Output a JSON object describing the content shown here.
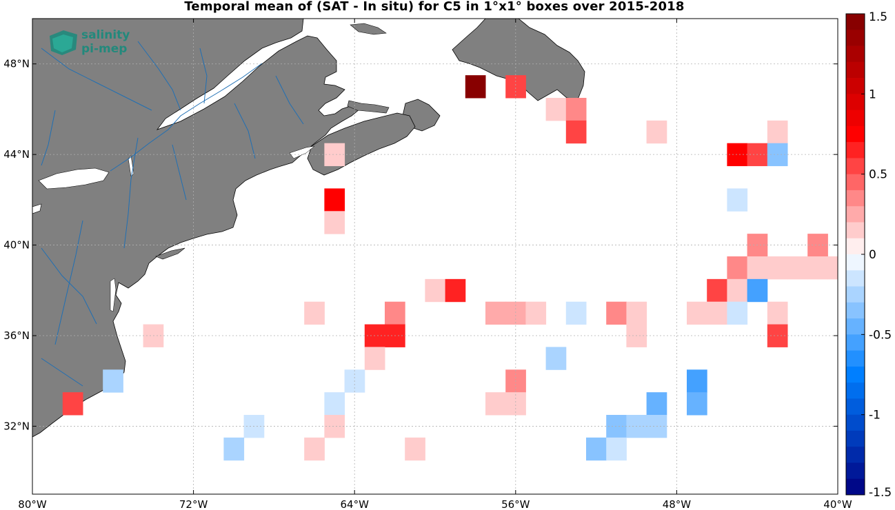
{
  "title": "Temporal mean of (SAT - In situ) for C5 in 1°x1° boxes over 2015-2018",
  "logo": {
    "line1": "salinity",
    "line2": "pi-mep",
    "icon": "salinity-pimep-logo-icon"
  },
  "map": {
    "lon_range": [
      -80,
      -40
    ],
    "lat_range": [
      29,
      50
    ],
    "land_color": "#808080",
    "river_color": "#1f6fb4",
    "grid": true,
    "lat_ticks": [
      {
        "value": 48,
        "label": "48°N"
      },
      {
        "value": 44,
        "label": "44°N"
      },
      {
        "value": 40,
        "label": "40°N"
      },
      {
        "value": 36,
        "label": "36°N"
      },
      {
        "value": 32,
        "label": "32°N"
      }
    ],
    "lon_ticks": [
      {
        "value": -80,
        "label": "80°W"
      },
      {
        "value": -72,
        "label": "72°W"
      },
      {
        "value": -64,
        "label": "64°W"
      },
      {
        "value": -56,
        "label": "56°W"
      },
      {
        "value": -48,
        "label": "48°W"
      },
      {
        "value": -40,
        "label": "40°W"
      }
    ]
  },
  "chart_data": {
    "type": "heatmap",
    "cell_size_deg": 1,
    "cells": [
      {
        "lon": -58,
        "lat": 47,
        "value": 1.5
      },
      {
        "lon": -56,
        "lat": 47,
        "value": 0.5
      },
      {
        "lon": -54,
        "lat": 46,
        "value": 0.15
      },
      {
        "lon": -53,
        "lat": 46,
        "value": 0.3
      },
      {
        "lon": -53,
        "lat": 45,
        "value": 0.5
      },
      {
        "lon": -49,
        "lat": 45,
        "value": 0.1
      },
      {
        "lon": -43,
        "lat": 45,
        "value": 0.1
      },
      {
        "lon": -45,
        "lat": 44,
        "value": 0.8
      },
      {
        "lon": -44,
        "lat": 44,
        "value": 0.5
      },
      {
        "lon": -43,
        "lat": 44,
        "value": -0.3
      },
      {
        "lon": -65,
        "lat": 44,
        "value": 0.1
      },
      {
        "lon": -45,
        "lat": 42,
        "value": -0.1
      },
      {
        "lon": -65,
        "lat": 42,
        "value": 0.8
      },
      {
        "lon": -65,
        "lat": 41,
        "value": 0.1
      },
      {
        "lon": -44,
        "lat": 40,
        "value": 0.3
      },
      {
        "lon": -41,
        "lat": 40,
        "value": 0.3
      },
      {
        "lon": -45,
        "lat": 39,
        "value": 0.3
      },
      {
        "lon": -44,
        "lat": 39,
        "value": 0.1
      },
      {
        "lon": -43,
        "lat": 39,
        "value": 0.1
      },
      {
        "lon": -42,
        "lat": 39,
        "value": 0.1
      },
      {
        "lon": -41,
        "lat": 39,
        "value": 0.1
      },
      {
        "lon": -40,
        "lat": 39,
        "value": 0.1
      },
      {
        "lon": -60,
        "lat": 38,
        "value": 0.1
      },
      {
        "lon": -59,
        "lat": 38,
        "value": 0.6
      },
      {
        "lon": -46,
        "lat": 38,
        "value": 0.5
      },
      {
        "lon": -45,
        "lat": 38,
        "value": 0.1
      },
      {
        "lon": -44,
        "lat": 38,
        "value": -0.6
      },
      {
        "lon": -66,
        "lat": 37,
        "value": 0.1
      },
      {
        "lon": -62,
        "lat": 37,
        "value": 0.3
      },
      {
        "lon": -57,
        "lat": 37,
        "value": 0.2
      },
      {
        "lon": -56,
        "lat": 37,
        "value": 0.2
      },
      {
        "lon": -55,
        "lat": 37,
        "value": 0.1
      },
      {
        "lon": -53,
        "lat": 37,
        "value": -0.1
      },
      {
        "lon": -51,
        "lat": 37,
        "value": 0.4
      },
      {
        "lon": -50,
        "lat": 37,
        "value": 0.1
      },
      {
        "lon": -47,
        "lat": 37,
        "value": 0.1
      },
      {
        "lon": -46,
        "lat": 37,
        "value": 0.1
      },
      {
        "lon": -45,
        "lat": 37,
        "value": -0.1
      },
      {
        "lon": -43,
        "lat": 37,
        "value": 0.1
      },
      {
        "lon": -74,
        "lat": 36,
        "value": 0.1
      },
      {
        "lon": -63,
        "lat": 36,
        "value": 0.6
      },
      {
        "lon": -62,
        "lat": 36,
        "value": 0.6
      },
      {
        "lon": -50,
        "lat": 36,
        "value": 0.1
      },
      {
        "lon": -43,
        "lat": 36,
        "value": 0.5
      },
      {
        "lon": -63,
        "lat": 35,
        "value": 0.1
      },
      {
        "lon": -54,
        "lat": 35,
        "value": -0.25
      },
      {
        "lon": -76,
        "lat": 34,
        "value": -0.25
      },
      {
        "lon": -64,
        "lat": 34,
        "value": -0.1
      },
      {
        "lon": -56,
        "lat": 34,
        "value": 0.3
      },
      {
        "lon": -47,
        "lat": 34,
        "value": -0.6
      },
      {
        "lon": -78,
        "lat": 33,
        "value": 0.5
      },
      {
        "lon": -65,
        "lat": 33,
        "value": -0.1
      },
      {
        "lon": -57,
        "lat": 33,
        "value": 0.1
      },
      {
        "lon": -56,
        "lat": 33,
        "value": 0.1
      },
      {
        "lon": -49,
        "lat": 33,
        "value": -0.45
      },
      {
        "lon": -47,
        "lat": 33,
        "value": -0.45
      },
      {
        "lon": -69,
        "lat": 32,
        "value": -0.1
      },
      {
        "lon": -65,
        "lat": 32,
        "value": 0.1
      },
      {
        "lon": -51,
        "lat": 32,
        "value": -0.4
      },
      {
        "lon": -50,
        "lat": 32,
        "value": -0.25
      },
      {
        "lon": -49,
        "lat": 32,
        "value": -0.25
      },
      {
        "lon": -70,
        "lat": 31,
        "value": -0.25
      },
      {
        "lon": -66,
        "lat": 31,
        "value": 0.1
      },
      {
        "lon": -61,
        "lat": 31,
        "value": 0.1
      },
      {
        "lon": -52,
        "lat": 31,
        "value": -0.4
      },
      {
        "lon": -51,
        "lat": 31,
        "value": -0.2
      }
    ],
    "colorbar": {
      "range": [
        -1.5,
        1.5
      ],
      "levels": 30,
      "ticks": [
        {
          "value": 1.5,
          "label": "1.5"
        },
        {
          "value": 1,
          "label": "1"
        },
        {
          "value": 0.5,
          "label": "0.5"
        },
        {
          "value": 0,
          "label": "0"
        },
        {
          "value": -0.5,
          "label": "-0.5"
        },
        {
          "value": -1,
          "label": "-1"
        },
        {
          "value": -1.5,
          "label": "-1.5"
        }
      ]
    }
  }
}
